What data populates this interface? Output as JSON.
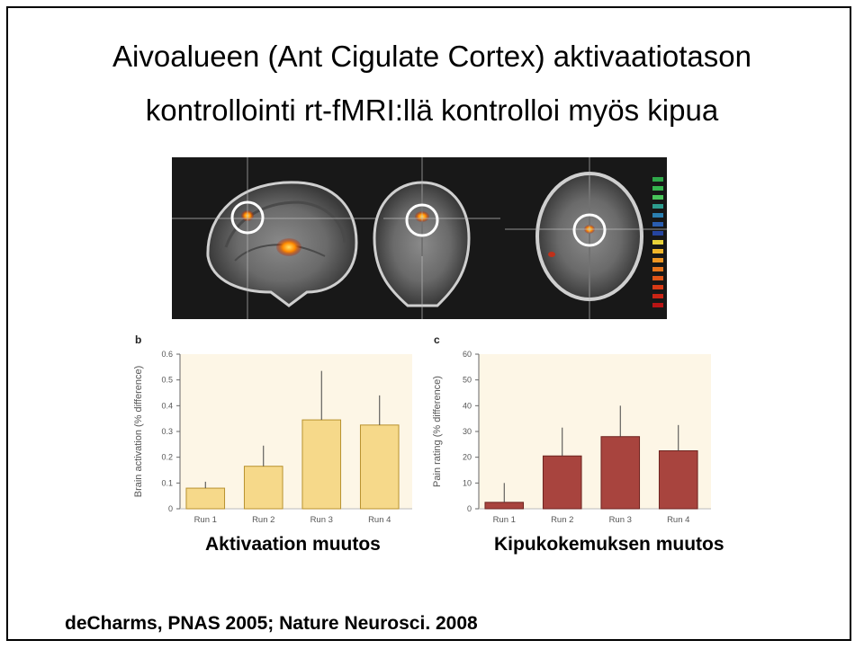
{
  "slide": {
    "title_line1": "Aivoalueen (Ant Cigulate Cortex) aktivaatiotason",
    "title_line2": "kontrollointi rt-fMRI:llä kontrolloi myös kipua",
    "caption_left": "Aktivaation muutos",
    "caption_right": "Kipukokemuksen muutos",
    "reference": "deCharms, PNAS 2005; Nature Neurosci. 2008"
  },
  "colors": {
    "bar_b_fill": "#f6d98a",
    "bar_b_stroke": "#b8922f",
    "bar_c_fill": "#a8443e",
    "bar_c_stroke": "#6e2420",
    "chart_bg": "#fdf6e6",
    "axis_text": "#555555"
  },
  "chart_data": [
    {
      "type": "bar",
      "panel_label": "b",
      "ylabel": "Brain activation (% difference)",
      "xlabel": "",
      "categories": [
        "Run 1",
        "Run 2",
        "Run 3",
        "Run 4"
      ],
      "values": [
        0.08,
        0.165,
        0.345,
        0.325
      ],
      "error": [
        0.025,
        0.08,
        0.19,
        0.115
      ],
      "ylim": [
        0,
        0.6
      ],
      "yticks": [
        "0",
        "0.1",
        "0.2",
        "0.3",
        "0.4",
        "0.5",
        "0.6"
      ],
      "grid": false
    },
    {
      "type": "bar",
      "panel_label": "c",
      "ylabel": "Pain rating (% difference)",
      "xlabel": "",
      "categories": [
        "Run 1",
        "Run 2",
        "Run 3",
        "Run 4"
      ],
      "values": [
        2.5,
        20.5,
        28,
        22.5
      ],
      "error": [
        7.5,
        11,
        12,
        10
      ],
      "ylim": [
        0,
        60
      ],
      "yticks": [
        "0",
        "10",
        "20",
        "30",
        "40",
        "50",
        "60"
      ],
      "grid": false
    }
  ]
}
